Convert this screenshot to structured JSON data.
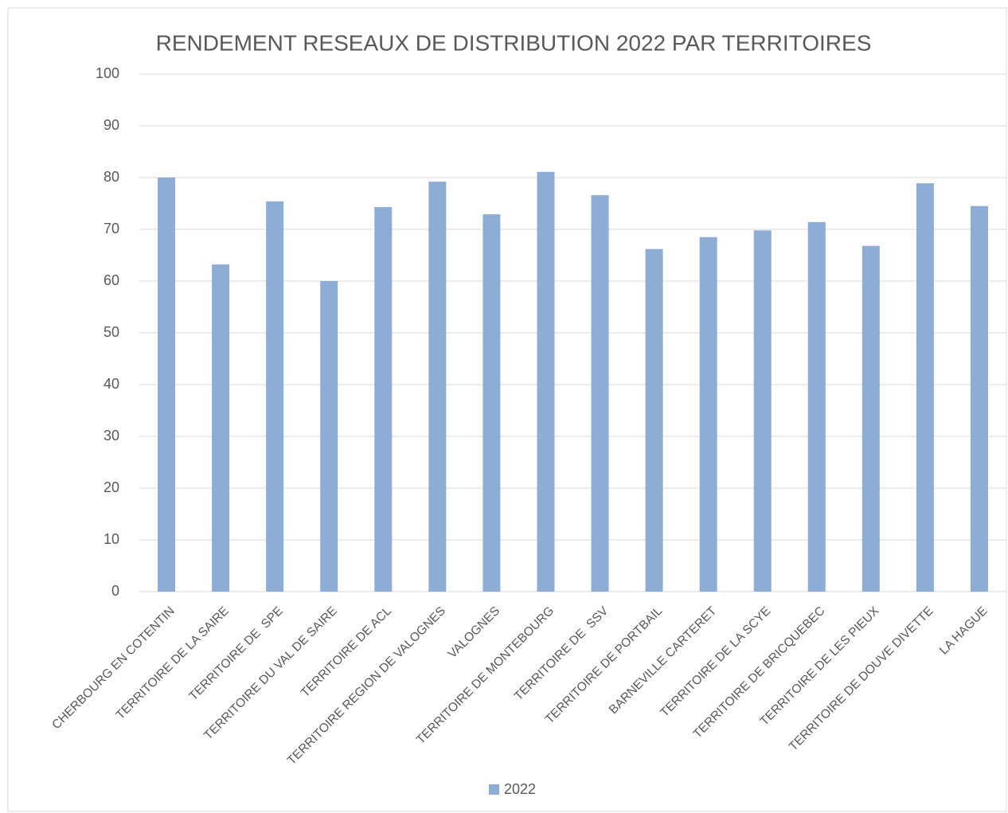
{
  "chart_data": {
    "type": "bar",
    "title": "RENDEMENT RESEAUX DE DISTRIBUTION 2022 PAR TERRITOIRES",
    "categories": [
      "CHERBOURG EN COTENTIN",
      "TERRITOIRE DE LA SAIRE",
      "TERRITOIRE DE  SPE",
      "TERRITOIRE DU VAL DE SAIRE",
      "TERRITOIRE DE ACL",
      "TERRITOIRE REGION DE VALOGNES",
      "VALOGNES",
      "TERRITOIRE DE MONTEBOURG",
      "TERRITOIRE DE  SSV",
      "TERRITOIRE DE PORTBAIL",
      "BARNEVILLE CARTERET",
      "TERRITOIRE DE LA SCYE",
      "TERRITOIRE DE BRICQUEBEC",
      "TERRITOIRE DE LES PIEUX",
      "TERRITOIRE DE DOUVE DIVETTE",
      "LA HAGUE"
    ],
    "series": [
      {
        "name": "2022",
        "color": "#8eadd5",
        "values": [
          80.0,
          63.2,
          75.4,
          60.0,
          74.3,
          79.2,
          72.9,
          81.1,
          76.6,
          66.2,
          68.5,
          69.8,
          71.4,
          66.8,
          78.9,
          74.5
        ]
      }
    ],
    "ylim": [
      0,
      100
    ],
    "yticks": [
      0,
      10,
      20,
      30,
      40,
      50,
      60,
      70,
      80,
      90,
      100
    ],
    "grid": true,
    "legend": "bottom"
  }
}
